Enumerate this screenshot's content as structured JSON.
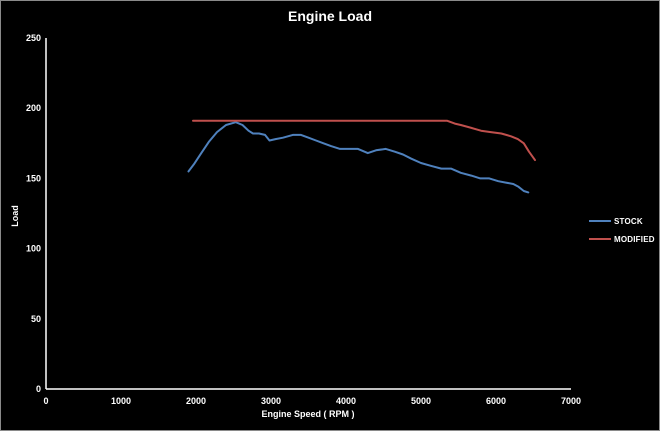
{
  "chart_data": {
    "type": "line",
    "title": "Engine Load",
    "xlabel": "Engine Speed ( RPM )",
    "ylabel": "Load",
    "xlim": [
      0,
      7000
    ],
    "ylim": [
      0,
      250
    ],
    "x_ticks": [
      0,
      1000,
      2000,
      3000,
      4000,
      5000,
      6000,
      7000
    ],
    "y_ticks": [
      0,
      50,
      100,
      150,
      200,
      250
    ],
    "grid": false,
    "legend_position": "right",
    "background_color": "#000000",
    "text_color": "#ffffff",
    "axis_color": "#ffffff",
    "series": [
      {
        "name": "STOCK",
        "color": "#4f81bd",
        "points": [
          [
            1900,
            155
          ],
          [
            1970,
            160
          ],
          [
            2070,
            168
          ],
          [
            2170,
            176
          ],
          [
            2280,
            183
          ],
          [
            2400,
            188
          ],
          [
            2530,
            190
          ],
          [
            2620,
            188
          ],
          [
            2700,
            184
          ],
          [
            2760,
            182
          ],
          [
            2840,
            182
          ],
          [
            2920,
            181
          ],
          [
            2980,
            177
          ],
          [
            3060,
            178
          ],
          [
            3160,
            179
          ],
          [
            3290,
            181
          ],
          [
            3400,
            181
          ],
          [
            3500,
            179
          ],
          [
            3600,
            177
          ],
          [
            3700,
            175
          ],
          [
            3800,
            173
          ],
          [
            3920,
            171
          ],
          [
            4040,
            171
          ],
          [
            4160,
            171
          ],
          [
            4290,
            168
          ],
          [
            4400,
            170
          ],
          [
            4530,
            171
          ],
          [
            4650,
            169
          ],
          [
            4760,
            167
          ],
          [
            4870,
            164
          ],
          [
            5000,
            161
          ],
          [
            5130,
            159
          ],
          [
            5270,
            157
          ],
          [
            5400,
            157
          ],
          [
            5530,
            154
          ],
          [
            5670,
            152
          ],
          [
            5790,
            150
          ],
          [
            5910,
            150
          ],
          [
            6030,
            148
          ],
          [
            6130,
            147
          ],
          [
            6230,
            146
          ],
          [
            6300,
            144
          ],
          [
            6370,
            141
          ],
          [
            6430,
            140
          ]
        ]
      },
      {
        "name": "MODIFIED",
        "color": "#c0504d",
        "points": [
          [
            1960,
            191
          ],
          [
            2400,
            191
          ],
          [
            2900,
            191
          ],
          [
            3400,
            191
          ],
          [
            3900,
            191
          ],
          [
            4400,
            191
          ],
          [
            4900,
            191
          ],
          [
            5350,
            191
          ],
          [
            5450,
            189
          ],
          [
            5530,
            188
          ],
          [
            5670,
            186
          ],
          [
            5800,
            184
          ],
          [
            5930,
            183
          ],
          [
            6070,
            182
          ],
          [
            6200,
            180
          ],
          [
            6290,
            178
          ],
          [
            6370,
            175
          ],
          [
            6440,
            169
          ],
          [
            6520,
            163
          ]
        ]
      }
    ]
  }
}
